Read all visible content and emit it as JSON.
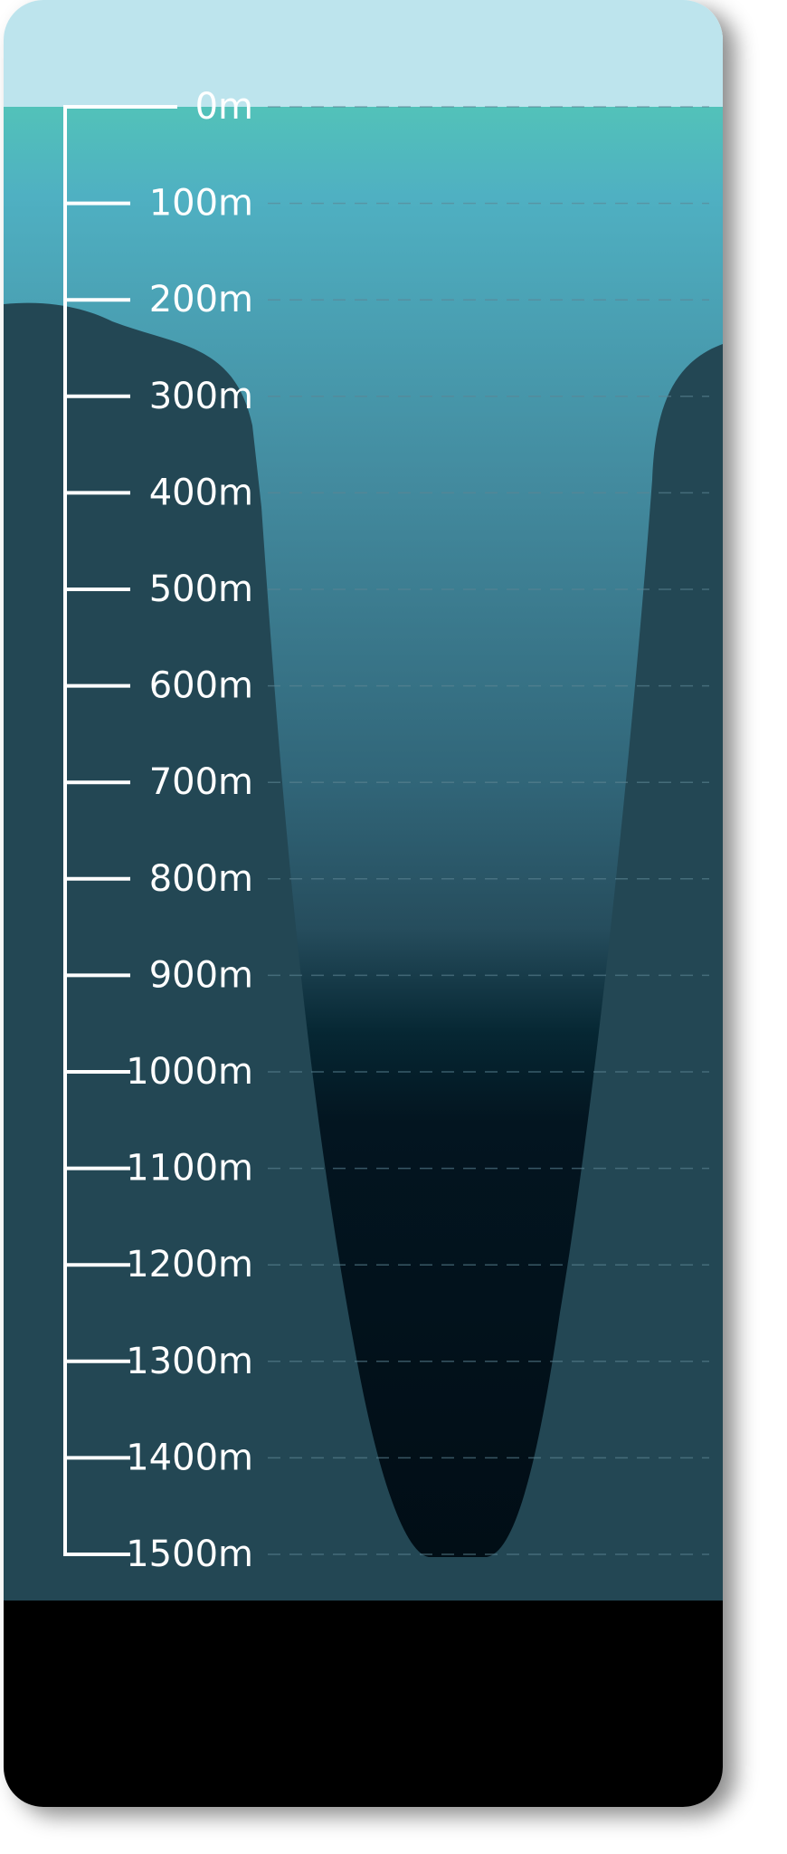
{
  "depth_scale": {
    "unit": "m",
    "labels": [
      "0m",
      "100m",
      "200m",
      "300m",
      "400m",
      "500m",
      "600m",
      "700m",
      "800m",
      "900m",
      "1000m",
      "1100m",
      "1200m",
      "1300m",
      "1400m",
      "1500m"
    ]
  },
  "colors": {
    "sky": "#bde4ed",
    "surface_water": "#52c2b9",
    "mid_water": "#2c5a6a",
    "deep_water": "#020f17",
    "terrain": "#234754",
    "floor": "#000000",
    "scale_line": "#ffffff",
    "gridline": "#5d8594"
  }
}
